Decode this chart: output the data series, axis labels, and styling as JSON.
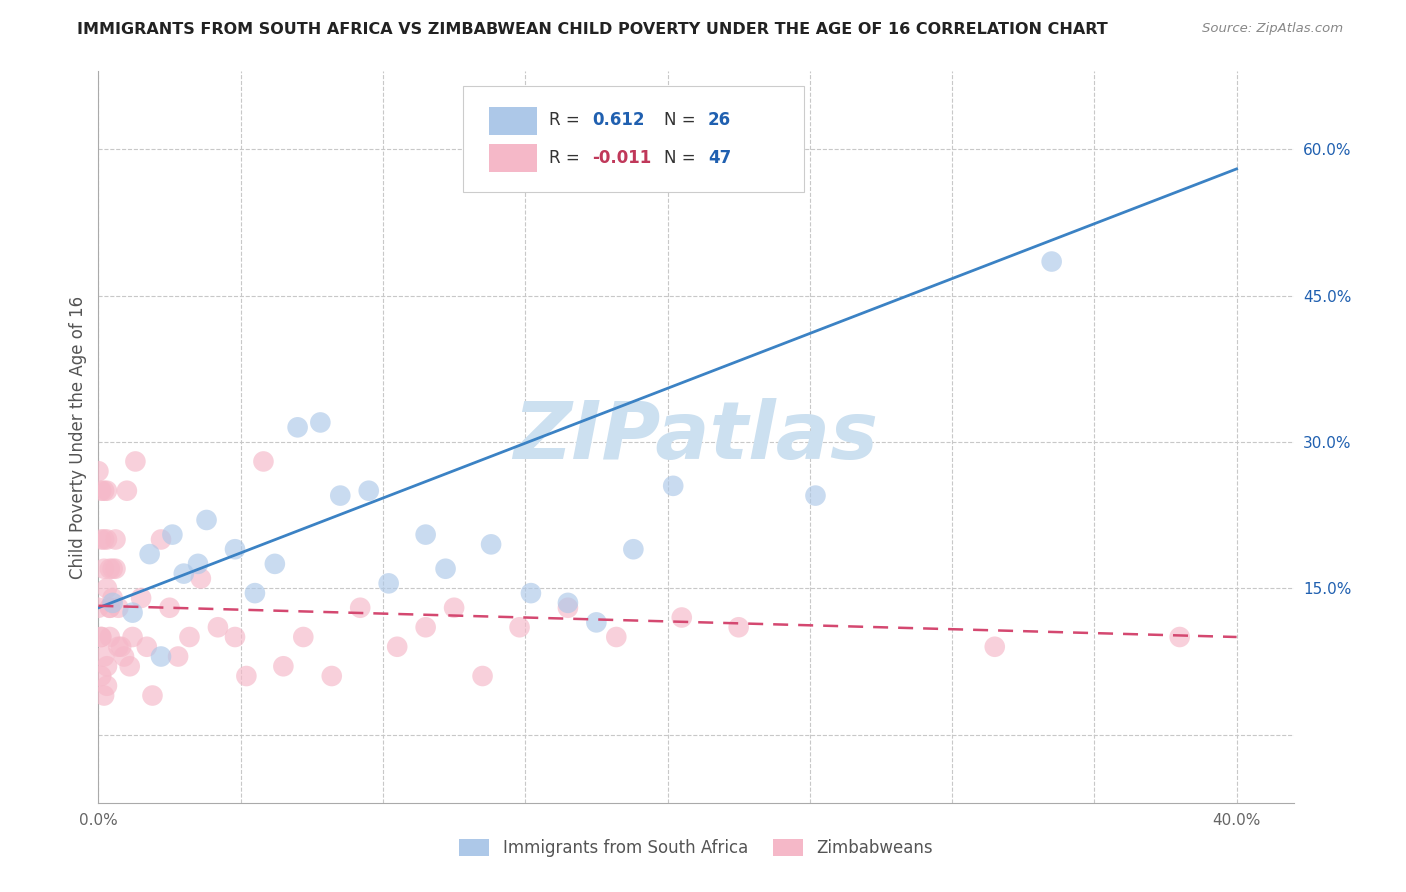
{
  "title": "IMMIGRANTS FROM SOUTH AFRICA VS ZIMBABWEAN CHILD POVERTY UNDER THE AGE OF 16 CORRELATION CHART",
  "source": "Source: ZipAtlas.com",
  "ylabel": "Child Poverty Under the Age of 16",
  "xlim": [
    0.0,
    0.42
  ],
  "ylim": [
    -0.07,
    0.68
  ],
  "xticks": [
    0.0,
    0.05,
    0.1,
    0.15,
    0.2,
    0.25,
    0.3,
    0.35,
    0.4
  ],
  "xticklabels": [
    "0.0%",
    "",
    "",
    "",
    "",
    "",
    "",
    "",
    "40.0%"
  ],
  "yticks_right": [
    0.0,
    0.15,
    0.3,
    0.45,
    0.6
  ],
  "yticklabels_right": [
    "",
    "15.0%",
    "30.0%",
    "45.0%",
    "60.0%"
  ],
  "watermark": "ZIPatlas",
  "blue_scatter_x": [
    0.005,
    0.012,
    0.018,
    0.022,
    0.026,
    0.03,
    0.035,
    0.038,
    0.048,
    0.055,
    0.062,
    0.07,
    0.078,
    0.085,
    0.095,
    0.102,
    0.115,
    0.122,
    0.138,
    0.152,
    0.165,
    0.175,
    0.188,
    0.202,
    0.252,
    0.335
  ],
  "blue_scatter_y": [
    0.135,
    0.125,
    0.185,
    0.08,
    0.205,
    0.165,
    0.175,
    0.22,
    0.19,
    0.145,
    0.175,
    0.315,
    0.32,
    0.245,
    0.25,
    0.155,
    0.205,
    0.17,
    0.195,
    0.145,
    0.135,
    0.115,
    0.19,
    0.255,
    0.245,
    0.485
  ],
  "pink_scatter_x": [
    0.001,
    0.001,
    0.002,
    0.002,
    0.003,
    0.003,
    0.004,
    0.004,
    0.005,
    0.005,
    0.006,
    0.006,
    0.007,
    0.007,
    0.008,
    0.009,
    0.01,
    0.011,
    0.012,
    0.013,
    0.015,
    0.017,
    0.019,
    0.022,
    0.025,
    0.028,
    0.032,
    0.036,
    0.042,
    0.048,
    0.052,
    0.058,
    0.065,
    0.072,
    0.082,
    0.092,
    0.105,
    0.115,
    0.125,
    0.135,
    0.148,
    0.165,
    0.182,
    0.205,
    0.225,
    0.315,
    0.38
  ],
  "pink_scatter_y": [
    0.06,
    0.1,
    0.08,
    0.04,
    0.07,
    0.05,
    0.13,
    0.1,
    0.14,
    0.17,
    0.2,
    0.17,
    0.13,
    0.09,
    0.09,
    0.08,
    0.25,
    0.07,
    0.1,
    0.28,
    0.14,
    0.09,
    0.04,
    0.2,
    0.13,
    0.08,
    0.1,
    0.16,
    0.11,
    0.1,
    0.06,
    0.28,
    0.07,
    0.1,
    0.06,
    0.13,
    0.09,
    0.11,
    0.13,
    0.06,
    0.11,
    0.13,
    0.1,
    0.12,
    0.11,
    0.09,
    0.1
  ],
  "pink_cluster_x": [
    0.0,
    0.0,
    0.001,
    0.001,
    0.001,
    0.002,
    0.002,
    0.002,
    0.003,
    0.003,
    0.003,
    0.004,
    0.004
  ],
  "pink_cluster_y": [
    0.13,
    0.27,
    0.2,
    0.25,
    0.1,
    0.25,
    0.2,
    0.17,
    0.25,
    0.2,
    0.15,
    0.13,
    0.17
  ],
  "blue_line_x": [
    0.0,
    0.4
  ],
  "blue_line_y": [
    0.13,
    0.58
  ],
  "pink_line_x": [
    0.0,
    0.4
  ],
  "pink_line_y": [
    0.132,
    0.1
  ],
  "legend_blue_r": "R =  0.612",
  "legend_blue_n": "N = 26",
  "legend_pink_r": "R = -0.011",
  "legend_pink_n": "N = 47",
  "blue_color": "#adc8e8",
  "blue_line_color": "#3b82c4",
  "pink_color": "#f5b8c8",
  "pink_line_color": "#d44870",
  "blue_text_color": "#2060b0",
  "pink_text_color": "#c0385a",
  "n_text_color": "#2060b0",
  "watermark_color": "#cce0f0",
  "background_color": "#ffffff",
  "grid_color": "#c8c8c8",
  "title_color": "#222222",
  "source_color": "#888888",
  "ylabel_color": "#555555"
}
